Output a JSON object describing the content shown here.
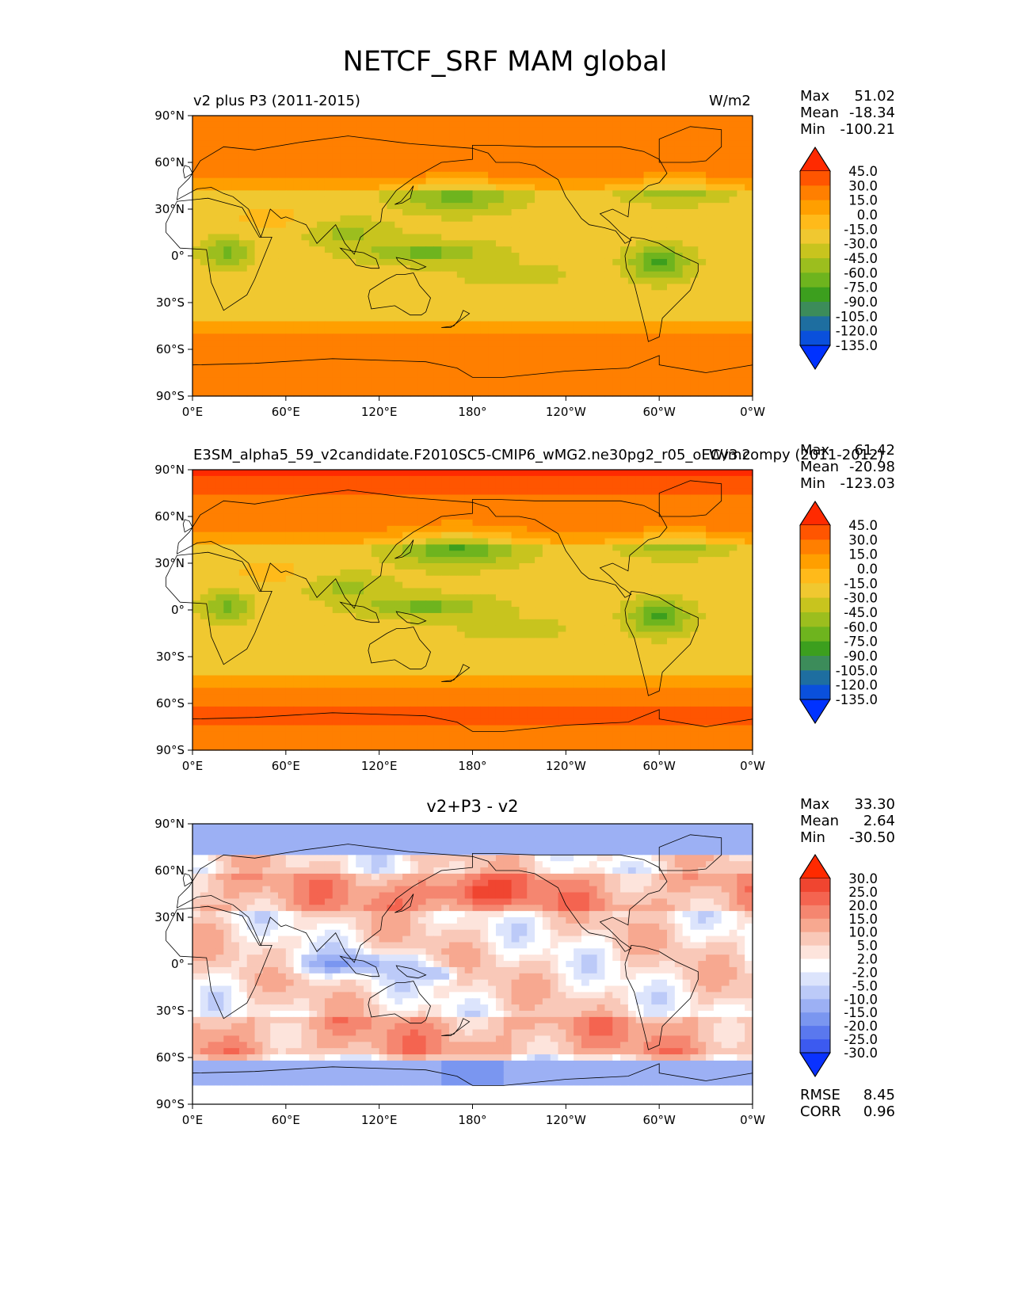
{
  "figure_title": "NETCF_SRF MAM global",
  "axis_ticks": {
    "lat": [
      "90°N",
      "60°N",
      "30°N",
      "0°",
      "30°S",
      "60°S",
      "90°S"
    ],
    "lon": [
      "0°E",
      "60°E",
      "120°E",
      "180°",
      "120°W",
      "60°W",
      "0°W"
    ]
  },
  "chart_data": [
    {
      "type": "heatmap",
      "title_left": "v2 plus P3 (2011-2015)",
      "title_center": "",
      "units": "W/m2",
      "stats": {
        "max_label": "Max",
        "max": "51.02",
        "mean_label": "Mean",
        "mean": "-18.34",
        "min_label": "Min",
        "min": "-100.21"
      },
      "colorbar": {
        "levels": [
          "45.0",
          "30.0",
          "15.0",
          "0.0",
          "-15.0",
          "-30.0",
          "-45.0",
          "-60.0",
          "-75.0",
          "-90.0",
          "-105.0",
          "-120.0",
          "-135.0"
        ],
        "colors": [
          "#ff2a00",
          "#ff5500",
          "#ff7f00",
          "#ff9f00",
          "#ffba1a",
          "#f0c830",
          "#c8c41e",
          "#9cbe1e",
          "#6eb41e",
          "#3c9f1e",
          "#3c8c5a",
          "#1e6ea0",
          "#0a50dc",
          "#0032ff"
        ]
      },
      "lon_range": [
        0,
        360
      ],
      "lat_range": [
        -90,
        90
      ]
    },
    {
      "type": "heatmap",
      "title_left": "E3SM_alpha5_59_v2candidate.F2010SC5-CMIP6_wMG2.ne30pg2_r05_oECv3.compy (2011-2012)",
      "title_center": "",
      "units": "W/m2",
      "stats": {
        "max_label": "Max",
        "max": "61.42",
        "mean_label": "Mean",
        "mean": "-20.98",
        "min_label": "Min",
        "min": "-123.03"
      },
      "colorbar": {
        "levels": [
          "45.0",
          "30.0",
          "15.0",
          "0.0",
          "-15.0",
          "-30.0",
          "-45.0",
          "-60.0",
          "-75.0",
          "-90.0",
          "-105.0",
          "-120.0",
          "-135.0"
        ],
        "colors": [
          "#ff2a00",
          "#ff5500",
          "#ff7f00",
          "#ff9f00",
          "#ffba1a",
          "#f0c830",
          "#c8c41e",
          "#9cbe1e",
          "#6eb41e",
          "#3c9f1e",
          "#3c8c5a",
          "#1e6ea0",
          "#0a50dc",
          "#0032ff"
        ]
      },
      "lon_range": [
        0,
        360
      ],
      "lat_range": [
        -90,
        90
      ]
    },
    {
      "type": "heatmap",
      "title_left": "",
      "title_center": "v2+P3 - v2",
      "units": "",
      "stats": {
        "max_label": "Max",
        "max": "33.30",
        "mean_label": "Mean",
        "mean": "2.64",
        "min_label": "Min",
        "min": "-30.50"
      },
      "extra_stats": {
        "rmse_label": "RMSE",
        "rmse": "8.45",
        "corr_label": "CORR",
        "corr": "0.96"
      },
      "colorbar": {
        "levels": [
          "30.0",
          "25.0",
          "20.0",
          "15.0",
          "10.0",
          "5.0",
          "2.0",
          "-2.0",
          "-5.0",
          "-10.0",
          "-15.0",
          "-20.0",
          "-25.0",
          "-30.0"
        ],
        "colors": [
          "#ff2a00",
          "#f04530",
          "#f46450",
          "#f58670",
          "#f7a890",
          "#f9c8b8",
          "#fde4dc",
          "#ffffff",
          "#dce4fc",
          "#bccaf8",
          "#9cb0f4",
          "#7a96f0",
          "#5a78ee",
          "#3c5af0",
          "#0a32ff"
        ]
      },
      "lon_range": [
        0,
        360
      ],
      "lat_range": [
        -90,
        90
      ]
    }
  ]
}
